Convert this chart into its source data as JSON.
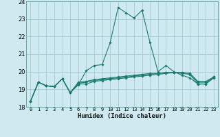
{
  "xlabel": "Humidex (Indice chaleur)",
  "bg_color": "#ceeaf0",
  "grid_color": "#aacfd8",
  "line_color": "#1a7a6e",
  "xlim": [
    -0.5,
    23.5
  ],
  "ylim": [
    18,
    24
  ],
  "yticks": [
    18,
    19,
    20,
    21,
    22,
    23,
    24
  ],
  "xticks": [
    0,
    1,
    2,
    3,
    4,
    5,
    6,
    7,
    8,
    9,
    10,
    11,
    12,
    13,
    14,
    15,
    16,
    17,
    18,
    19,
    20,
    21,
    22,
    23
  ],
  "series": [
    [
      18.3,
      19.4,
      19.2,
      19.15,
      19.6,
      18.8,
      19.25,
      20.05,
      20.35,
      20.4,
      21.65,
      23.65,
      23.35,
      23.05,
      23.5,
      21.65,
      20.0,
      20.35,
      20.0,
      19.8,
      19.65,
      19.3,
      19.3,
      19.7
    ],
    [
      18.3,
      19.4,
      19.2,
      19.15,
      19.6,
      18.8,
      19.3,
      19.3,
      19.45,
      19.5,
      19.55,
      19.6,
      19.65,
      19.7,
      19.75,
      19.8,
      19.85,
      19.9,
      19.95,
      19.9,
      19.85,
      19.3,
      19.3,
      19.65
    ],
    [
      18.3,
      19.4,
      19.2,
      19.15,
      19.6,
      18.8,
      19.35,
      19.4,
      19.5,
      19.55,
      19.6,
      19.65,
      19.7,
      19.75,
      19.8,
      19.85,
      19.9,
      19.95,
      19.95,
      19.95,
      19.9,
      19.4,
      19.4,
      19.7
    ],
    [
      18.3,
      19.4,
      19.2,
      19.15,
      19.6,
      18.8,
      19.4,
      19.45,
      19.55,
      19.6,
      19.65,
      19.7,
      19.75,
      19.8,
      19.85,
      19.9,
      19.9,
      19.95,
      19.95,
      19.95,
      19.9,
      19.45,
      19.45,
      19.7
    ]
  ]
}
